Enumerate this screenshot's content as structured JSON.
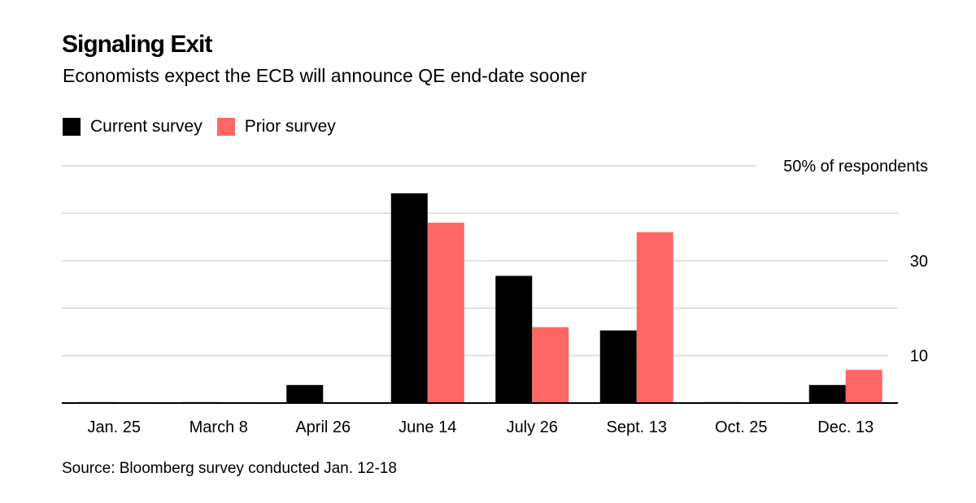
{
  "title": "Signaling Exit",
  "subtitle": "Economists expect the ECB will announce QE end-date sooner",
  "source": "Source: Bloomberg survey conducted Jan. 12-18",
  "colors": {
    "current": "#000000",
    "prior": "#ff6666",
    "grid": "#d9d9d9",
    "axis": "#000000"
  },
  "chart_data": {
    "type": "bar",
    "title": "Signaling Exit",
    "subtitle": "Economists expect the ECB will announce QE end-date sooner",
    "xlabel": "",
    "ylabel": "% of respondents",
    "ylim": [
      0,
      50
    ],
    "yticks": [
      10,
      20,
      30,
      40,
      50
    ],
    "ytick_labels": [
      "10",
      "",
      "30",
      "",
      "50% of respondents"
    ],
    "grid": true,
    "legend_position": "top-left",
    "categories": [
      "Jan. 25",
      "March 8",
      "April 26",
      "June 14",
      "July 26",
      "Sept. 13",
      "Oct. 25",
      "Dec. 13"
    ],
    "series": [
      {
        "name": "Current survey",
        "color": "#000000",
        "values": [
          0.2,
          0.2,
          3.8,
          44.2,
          26.8,
          15.3,
          0.2,
          3.8
        ]
      },
      {
        "name": "Prior survey",
        "color": "#ff6666",
        "values": [
          0.2,
          0.2,
          0.2,
          38.0,
          16.0,
          36.0,
          0.2,
          7.0
        ]
      }
    ]
  }
}
